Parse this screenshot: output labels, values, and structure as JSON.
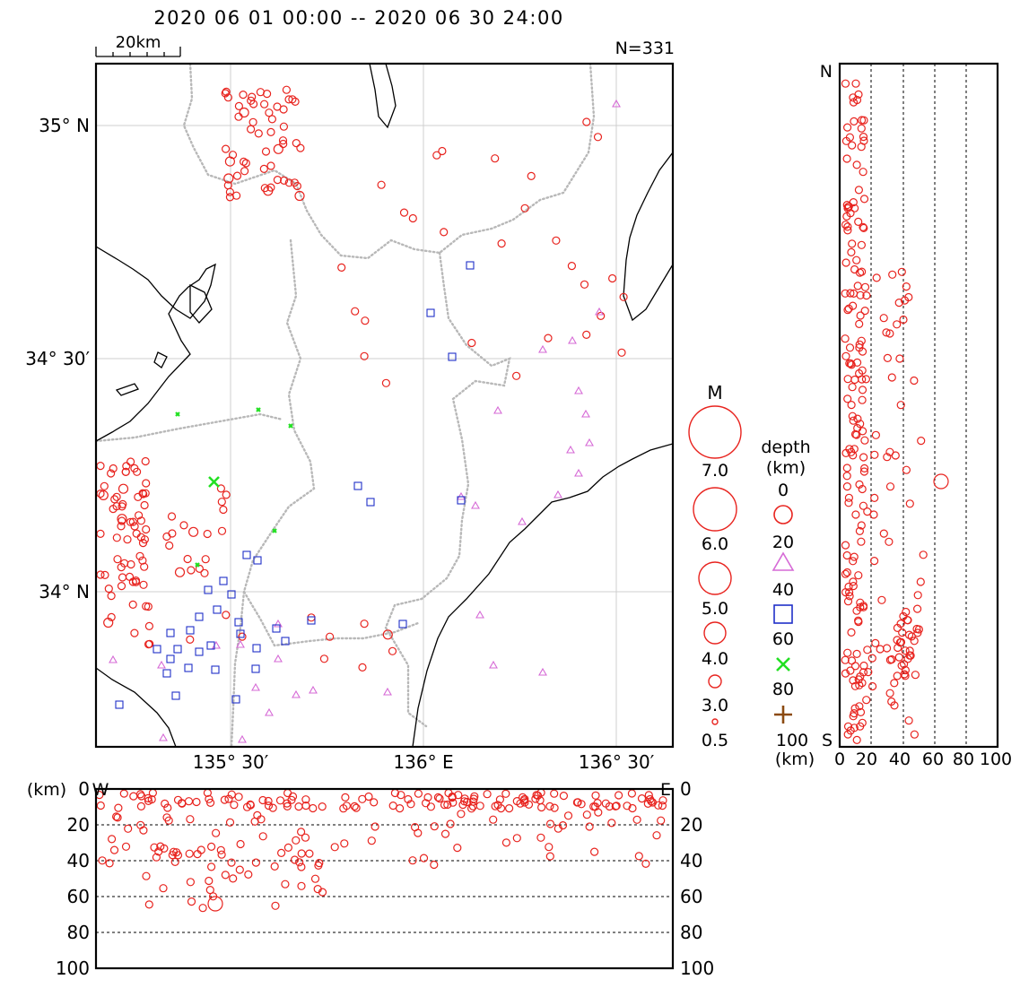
{
  "header": {
    "period": "2020 06 01 00:00 -- 2020 06 30 24:00",
    "count": "N=331",
    "scale_label": "20km"
  },
  "map": {
    "lat_labels": [
      "35° N",
      "34° 30′",
      "34° N"
    ],
    "lon_labels": [
      "135° 30′",
      "136° E",
      "136° 30′"
    ],
    "colors": {
      "depth_0_20": "#e8231e",
      "depth_20_40": "#d66ad6",
      "depth_40_60": "#2030c8",
      "depth_60_80": "#22e022",
      "depth_80_100": "#8b4a10",
      "coast": "#000000",
      "boundary": "#b8b8b8",
      "grid": "#cfcfcf"
    }
  },
  "legend": {
    "magnitude_title": "M",
    "magnitudes": [
      "7.0",
      "6.0",
      "5.0",
      "4.0",
      "3.0",
      "0.5"
    ],
    "depth_title_1": "depth",
    "depth_title_2": "(km)",
    "depth_ticks": [
      "0",
      "20",
      "40",
      "60",
      "80",
      "100"
    ],
    "depth_symbols": [
      "circle-icon",
      "triangle-icon",
      "square-icon",
      "cross-icon",
      "plus-icon"
    ]
  },
  "ns_section": {
    "north": "N",
    "south": "S",
    "unit": "(km)",
    "depth_ticks": [
      "0",
      "20",
      "40",
      "60",
      "80",
      "100"
    ]
  },
  "ew_section": {
    "unit": "(km)",
    "west": "W",
    "east": "E",
    "depth_ticks": [
      "0",
      "20",
      "40",
      "60",
      "80",
      "100"
    ]
  }
}
